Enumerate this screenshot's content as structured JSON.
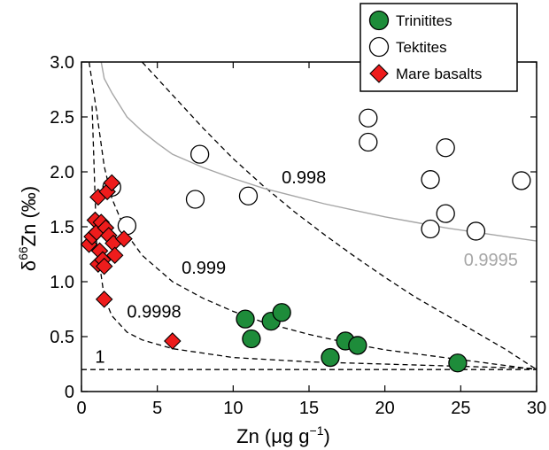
{
  "chart_data": {
    "type": "scatter",
    "xlabel_main": "Zn (",
    "xlabel_mu": "μ",
    "xlabel_g": "g g",
    "xlabel_exp": "−1",
    "xlabel_close": ")",
    "ylabel_delta": "δ",
    "ylabel_sup": "66",
    "ylabel_rest": "Zn (‰)",
    "xlim": [
      0,
      30
    ],
    "ylim": [
      0,
      3.0
    ],
    "xticks": [
      0,
      5,
      10,
      15,
      20,
      25,
      30
    ],
    "xtick_labels": [
      "0",
      "5",
      "10",
      "15",
      "20",
      "25",
      "30"
    ],
    "yticks": [
      0,
      0.5,
      1.0,
      1.5,
      2.0,
      2.5,
      3.0
    ],
    "ytick_labels": [
      "0",
      "0.5",
      "1.0",
      "1.5",
      "2.0",
      "2.5",
      "3.0"
    ],
    "legend_position": "top-right",
    "grid": false,
    "series": [
      {
        "name": "Trinitites",
        "marker": "circle",
        "fill": "#1e8c3a",
        "stroke": "#000000",
        "points": [
          [
            10.8,
            0.66
          ],
          [
            11.2,
            0.48
          ],
          [
            12.5,
            0.64
          ],
          [
            13.2,
            0.72
          ],
          [
            16.4,
            0.31
          ],
          [
            17.4,
            0.46
          ],
          [
            18.2,
            0.42
          ],
          [
            24.8,
            0.26
          ]
        ]
      },
      {
        "name": "Tektites",
        "marker": "circle",
        "fill": "#ffffff",
        "stroke": "#000000",
        "points": [
          [
            2.0,
            1.86
          ],
          [
            3.0,
            1.51
          ],
          [
            7.5,
            1.75
          ],
          [
            7.8,
            2.16
          ],
          [
            11.0,
            1.78
          ],
          [
            18.9,
            2.49
          ],
          [
            18.9,
            2.27
          ],
          [
            23.0,
            1.93
          ],
          [
            23.0,
            1.48
          ],
          [
            24.0,
            2.22
          ],
          [
            24.0,
            1.62
          ],
          [
            26.0,
            1.46
          ],
          [
            29.0,
            1.92
          ]
        ]
      },
      {
        "name": "Mare basalts",
        "marker": "diamond",
        "fill": "#ee1c1c",
        "stroke": "#000000",
        "points": [
          [
            0.5,
            1.34
          ],
          [
            0.7,
            1.41
          ],
          [
            0.9,
            1.56
          ],
          [
            1.0,
            1.45
          ],
          [
            1.1,
            1.77
          ],
          [
            1.1,
            1.16
          ],
          [
            1.2,
            1.28
          ],
          [
            1.3,
            1.54
          ],
          [
            1.4,
            1.2
          ],
          [
            1.5,
            1.14
          ],
          [
            1.6,
            1.49
          ],
          [
            1.7,
            1.82
          ],
          [
            1.8,
            1.42
          ],
          [
            2.0,
            1.9
          ],
          [
            2.1,
            1.35
          ],
          [
            2.2,
            1.24
          ],
          [
            2.8,
            1.39
          ],
          [
            1.5,
            0.84
          ],
          [
            6.0,
            0.46
          ]
        ]
      }
    ],
    "curves": [
      {
        "label": "1",
        "color": "#000000",
        "dash": true,
        "label_at": [
          0.9,
          0.32
        ],
        "points": [
          [
            0,
            0.2
          ],
          [
            30,
            0.2
          ]
        ]
      },
      {
        "label": "0.9998",
        "color": "#000000",
        "dash": true,
        "label_at": [
          3.0,
          0.73
        ],
        "points": [
          [
            0.7,
            2.6
          ],
          [
            1.0,
            1.35
          ],
          [
            1.5,
            0.86
          ],
          [
            2.0,
            0.69
          ],
          [
            3.0,
            0.54
          ],
          [
            4.0,
            0.47
          ],
          [
            6.0,
            0.39
          ],
          [
            10.0,
            0.31
          ],
          [
            15.0,
            0.27
          ],
          [
            20.0,
            0.25
          ],
          [
            25.0,
            0.23
          ],
          [
            30.0,
            0.21
          ]
        ]
      },
      {
        "label": "0.999",
        "color": "#000000",
        "dash": true,
        "label_at": [
          6.6,
          1.13
        ],
        "points": [
          [
            0.5,
            3.0
          ],
          [
            1.0,
            2.55
          ],
          [
            1.5,
            2.05
          ],
          [
            2.0,
            1.76
          ],
          [
            3.0,
            1.43
          ],
          [
            4.0,
            1.24
          ],
          [
            6.0,
            1.0
          ],
          [
            8.0,
            0.85
          ],
          [
            10.0,
            0.73
          ],
          [
            12.0,
            0.63
          ],
          [
            15.0,
            0.52
          ],
          [
            18.0,
            0.43
          ],
          [
            20.0,
            0.38
          ],
          [
            25.0,
            0.29
          ],
          [
            30.0,
            0.2
          ]
        ]
      },
      {
        "label": "0.998",
        "color": "#000000",
        "dash": true,
        "label_at": [
          13.2,
          1.95
        ],
        "points": [
          [
            4.0,
            3.0
          ],
          [
            6.0,
            2.7
          ],
          [
            8.0,
            2.4
          ],
          [
            10.0,
            2.12
          ],
          [
            12.0,
            1.87
          ],
          [
            14.0,
            1.64
          ],
          [
            16.0,
            1.43
          ],
          [
            18.0,
            1.23
          ],
          [
            20.0,
            1.04
          ],
          [
            22.0,
            0.86
          ],
          [
            24.0,
            0.7
          ],
          [
            26.0,
            0.54
          ],
          [
            28.0,
            0.38
          ],
          [
            30.0,
            0.2
          ]
        ]
      },
      {
        "label": "0.9995",
        "color": "#a6a6a6",
        "dash": false,
        "label_at": [
          25.2,
          1.2
        ],
        "points": [
          [
            1.3,
            3.0
          ],
          [
            1.5,
            2.85
          ],
          [
            2.0,
            2.72
          ],
          [
            3.0,
            2.5
          ],
          [
            4.0,
            2.37
          ],
          [
            5.0,
            2.26
          ],
          [
            6.0,
            2.16
          ],
          [
            8.0,
            2.04
          ],
          [
            10.0,
            1.94
          ],
          [
            12.0,
            1.85
          ],
          [
            14.0,
            1.78
          ],
          [
            16.0,
            1.71
          ],
          [
            18.0,
            1.65
          ],
          [
            20.0,
            1.59
          ],
          [
            22.0,
            1.54
          ],
          [
            24.0,
            1.49
          ],
          [
            26.0,
            1.45
          ],
          [
            28.0,
            1.41
          ],
          [
            30.0,
            1.37
          ]
        ]
      }
    ]
  }
}
